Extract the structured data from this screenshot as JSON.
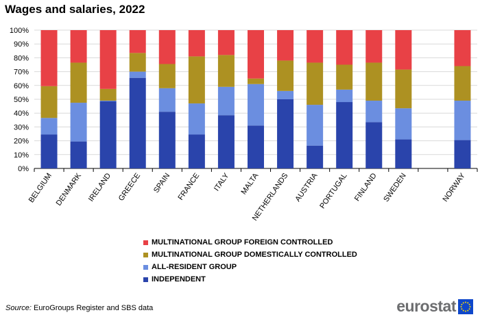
{
  "title": "Wages and salaries, 2022",
  "source_label": "Source:",
  "source_text": " EuroGroups Register and SBS data",
  "brand": "eurostat",
  "chart_data": {
    "type": "bar",
    "stacked": true,
    "title": "Wages and salaries, 2022",
    "categories": [
      "BELGIUM",
      "DENMARK",
      "IRELAND",
      "GREECE",
      "SPAIN",
      "FRANCE",
      "ITALY",
      "MALTA",
      "NETHERLANDS",
      "AUSTRIA",
      "PORTUGAL",
      "FINLAND",
      "SWEDEN",
      "",
      "NORWAY"
    ],
    "ylim": [
      0,
      100
    ],
    "yticks": [
      "0%",
      "10%",
      "20%",
      "30%",
      "40%",
      "50%",
      "60%",
      "70%",
      "80%",
      "90%",
      "100%"
    ],
    "grid": true,
    "legend_position": "bottom",
    "series": [
      {
        "name": "INDEPENDENT",
        "color": "#2a44ab",
        "values": [
          24.5,
          19.5,
          48.5,
          65.5,
          41,
          24.5,
          38.5,
          31,
          50,
          16.5,
          48,
          33.5,
          21,
          null,
          20.5
        ]
      },
      {
        "name": "ALL-RESIDENT GROUP",
        "color": "#6b8ee0",
        "values": [
          12,
          28,
          0.5,
          4.5,
          17,
          22.5,
          20.5,
          30,
          6,
          29.5,
          9,
          15.5,
          22.5,
          null,
          28.5
        ]
      },
      {
        "name": "MULTINATIONAL GROUP DOMESTICALLY CONTROLLED",
        "color": "#ad9122",
        "values": [
          23,
          29,
          8.5,
          13.5,
          17.5,
          34,
          23,
          4,
          22,
          30.5,
          18,
          27.5,
          28,
          null,
          25
        ]
      },
      {
        "name": "MULTINATIONAL GROUP FOREIGN CONTROLLED",
        "color": "#e84146",
        "values": [
          40.5,
          23.5,
          42.5,
          16.5,
          24.5,
          19,
          18,
          35,
          22,
          23.5,
          25,
          23.5,
          28.5,
          null,
          26
        ]
      }
    ]
  }
}
